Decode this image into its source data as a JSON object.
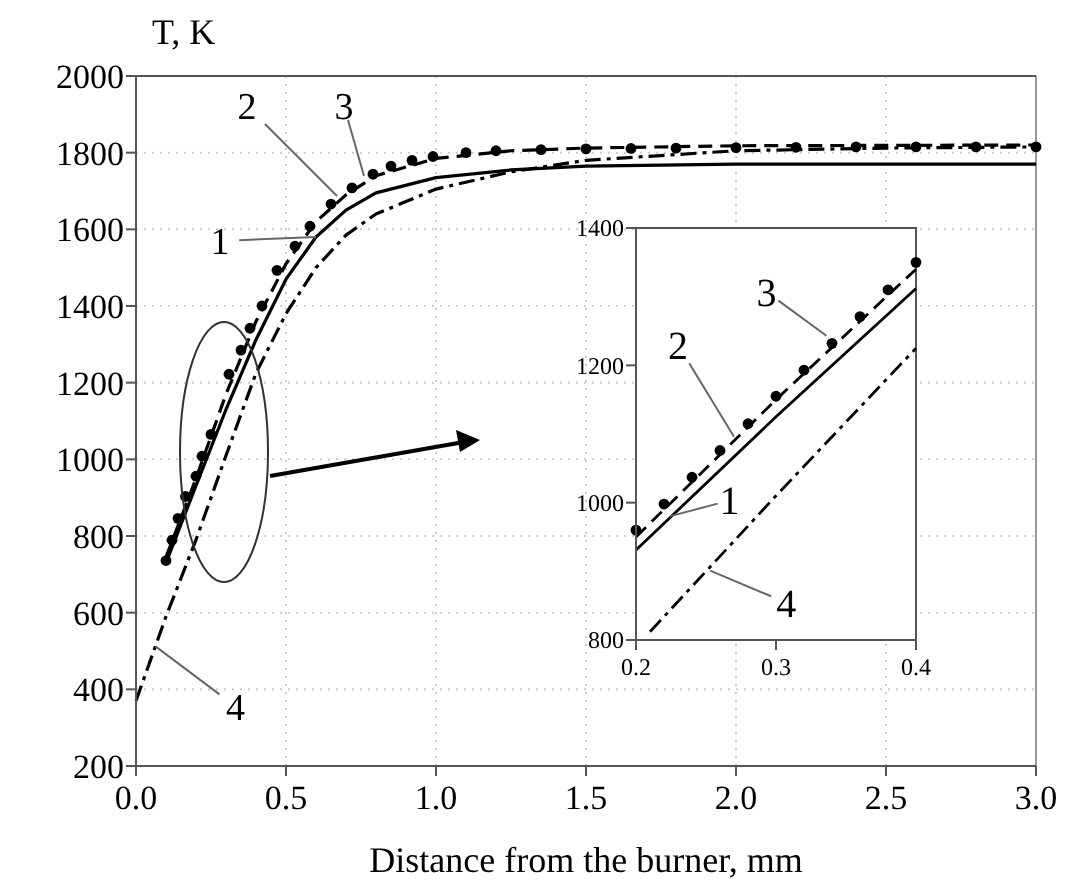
{
  "chart_data": [
    {
      "type": "line",
      "ylabel": "T, K",
      "xlabel": "Distance from the burner, mm",
      "xlim": [
        0,
        3
      ],
      "ylim": [
        200,
        2000
      ],
      "xticks": [
        {
          "value": 0,
          "label": "0.0"
        },
        {
          "value": 0.5,
          "label": "0.5"
        },
        {
          "value": 1,
          "label": "1.0"
        },
        {
          "value": 1.5,
          "label": "1.5"
        },
        {
          "value": 2,
          "label": "2.0"
        },
        {
          "value": 2.5,
          "label": "2.5"
        },
        {
          "value": 3,
          "label": "3.0"
        }
      ],
      "yticks": [
        200,
        400,
        600,
        800,
        1000,
        1200,
        1400,
        1600,
        1800,
        2000
      ],
      "grid": true,
      "series": [
        {
          "color": "#000000",
          "line_style": "solid",
          "x": [
            0.1,
            0.2,
            0.3,
            0.4,
            0.5,
            0.6,
            0.7,
            0.8,
            1.0,
            1.25,
            1.5,
            2.0,
            3.0
          ],
          "values": [
            730,
            931,
            1130,
            1312,
            1470,
            1580,
            1650,
            1695,
            1735,
            1755,
            1765,
            1770,
            1770
          ]
        },
        {
          "color": "#000000",
          "line_style": "dashed",
          "x": [
            0.1,
            0.2,
            0.3,
            0.4,
            0.5,
            0.6,
            0.7,
            0.8,
            1.0,
            1.25,
            1.5,
            2.0,
            3.0
          ],
          "values": [
            745,
            950,
            1170,
            1360,
            1510,
            1620,
            1690,
            1740,
            1785,
            1805,
            1812,
            1818,
            1820
          ]
        },
        {
          "type": "scatter",
          "color": "#000000",
          "marker": "circle",
          "x": [
            0.1,
            0.12,
            0.14,
            0.165,
            0.2,
            0.22,
            0.25,
            0.31,
            0.35,
            0.38,
            0.42,
            0.47,
            0.53,
            0.58,
            0.65,
            0.72,
            0.79,
            0.85,
            0.92,
            0.99,
            1.1,
            1.2,
            1.35,
            1.5,
            1.65,
            1.8,
            2.0,
            2.2,
            2.4,
            2.6,
            2.8,
            3.0
          ],
          "values": [
            736,
            789,
            846,
            903,
            956,
            1008,
            1065,
            1222,
            1285,
            1342,
            1400,
            1493,
            1556,
            1608,
            1666,
            1708,
            1744,
            1765,
            1780,
            1790,
            1800,
            1805,
            1808,
            1810,
            1811,
            1812,
            1813,
            1814,
            1815,
            1815,
            1815,
            1815
          ]
        },
        {
          "color": "#000000",
          "line_style": "dashdot",
          "x": [
            0,
            0.1,
            0.2,
            0.3,
            0.4,
            0.5,
            0.6,
            0.7,
            0.8,
            1.0,
            1.25,
            1.5,
            2.0,
            2.5,
            3.0
          ],
          "values": [
            370,
            590,
            790,
            1010,
            1225,
            1380,
            1500,
            1585,
            1640,
            1705,
            1750,
            1780,
            1805,
            1812,
            1815
          ]
        }
      ],
      "annotations": [
        {
          "text": "1",
          "x": 0.6,
          "y": 1580
        },
        {
          "text": "2",
          "x": 0.67,
          "y": 1687
        },
        {
          "text": "3",
          "x": 0.76,
          "y": 1739
        },
        {
          "text": "4",
          "x": 0.065,
          "y": 512
        }
      ]
    },
    {
      "type": "line",
      "xlim": [
        0.2,
        0.4
      ],
      "ylim": [
        800,
        1400
      ],
      "xticks": [
        0.2,
        0.3,
        0.4
      ],
      "yticks": [
        800,
        1000,
        1200,
        1400
      ],
      "grid": false,
      "series": [
        {
          "color": "#000000",
          "line_style": "solid",
          "x": [
            0.2,
            0.3,
            0.4
          ],
          "values": [
            931,
            1125,
            1312
          ]
        },
        {
          "color": "#000000",
          "line_style": "dashed",
          "x": [
            0.2,
            0.3,
            0.4
          ],
          "values": [
            950,
            1150,
            1340
          ]
        },
        {
          "type": "scatter",
          "color": "#000000",
          "marker": "circle",
          "x": [
            0.2,
            0.22,
            0.24,
            0.26,
            0.28,
            0.3,
            0.32,
            0.34,
            0.36,
            0.38,
            0.4
          ],
          "values": [
            960,
            998,
            1037,
            1076,
            1115,
            1155,
            1193,
            1232,
            1271,
            1310,
            1350
          ]
        },
        {
          "color": "#000000",
          "line_style": "dashdot",
          "x": [
            0.21,
            0.3,
            0.4
          ],
          "values": [
            812,
            1010,
            1225
          ]
        }
      ],
      "annotations": [
        {
          "text": "1",
          "x": 0.224,
          "y": 980
        },
        {
          "text": "2",
          "x": 0.27,
          "y": 1096
        },
        {
          "text": "3",
          "x": 0.336,
          "y": 1243
        },
        {
          "text": "4",
          "x": 0.253,
          "y": 901
        }
      ]
    }
  ]
}
